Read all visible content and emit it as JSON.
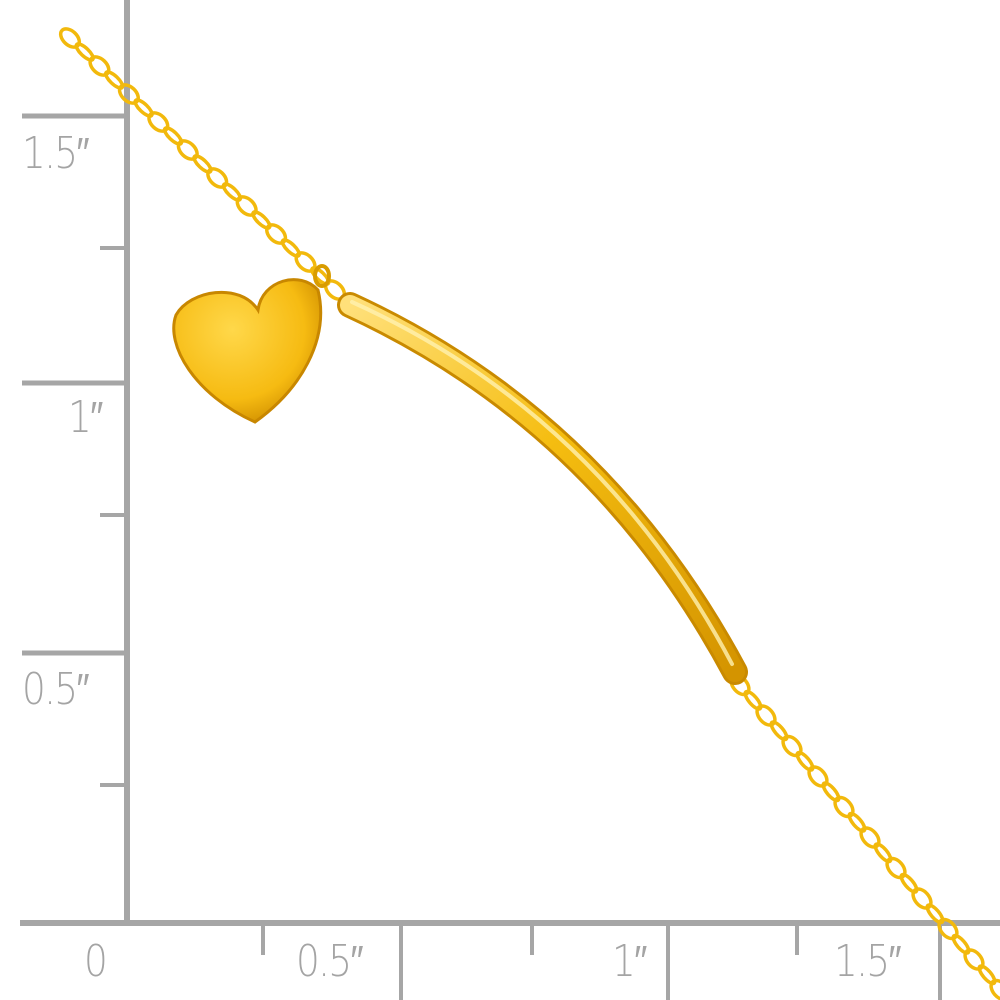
{
  "ruler": {
    "vertical_labels": [
      "1.5″",
      "1″",
      "0.5″"
    ],
    "horizontal_labels": [
      "0",
      "0.5″",
      "1″",
      "1.5″"
    ],
    "color": "#a6a6a6"
  },
  "product": {
    "metal_color": "#f2b90c",
    "shade_color": "#c98a00",
    "components": [
      "cable-chain",
      "heart-charm",
      "curved-bar"
    ]
  }
}
